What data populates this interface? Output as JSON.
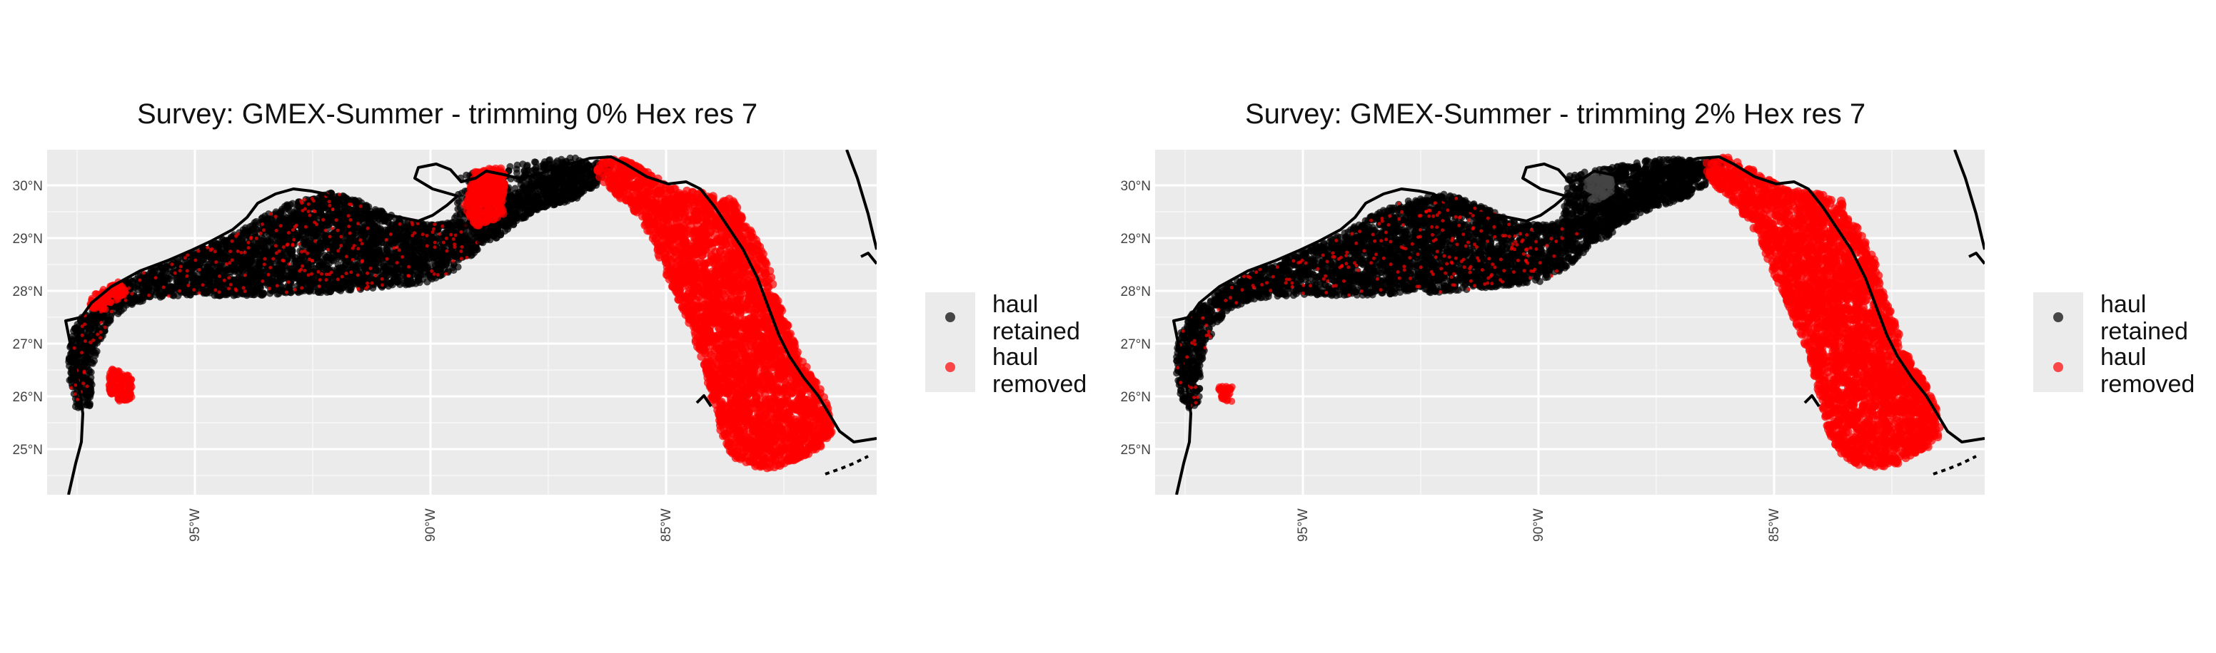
{
  "colors": {
    "retained": "#000000",
    "removed": "#ff0000",
    "panel_bg": "#ebebeb",
    "grid": "#ffffff",
    "coast": "#000000"
  },
  "axes": {
    "lat_ticks": [
      "30°N",
      "29°N",
      "28°N",
      "27°N",
      "26°N",
      "25°N"
    ],
    "lon_ticks": [
      "95°W",
      "90°W",
      "85°W"
    ]
  },
  "legend": {
    "retained_label": "haul\nretained",
    "removed_label": "haul\nremoved",
    "retained_line1": "haul",
    "retained_line2": "retained",
    "removed_line1": "haul",
    "removed_line2": "removed"
  },
  "panels": [
    {
      "title": "Survey: GMEX-Summer - trimming 0% Hex res 7",
      "trim_percent": 0
    },
    {
      "title": "Survey: GMEX-Summer - trimming 2% Hex res 7",
      "trim_percent": 2
    }
  ]
}
